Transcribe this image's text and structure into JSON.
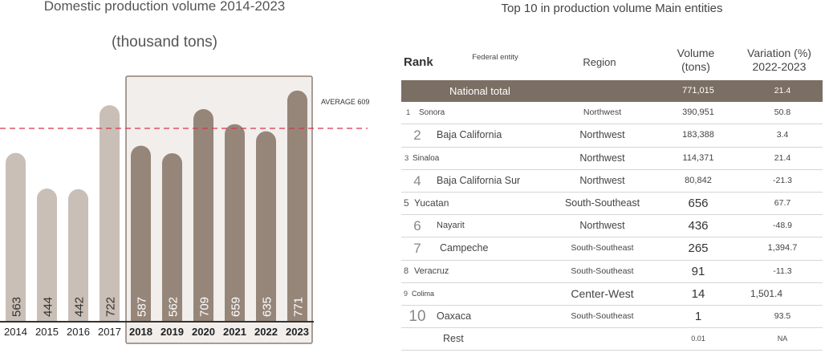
{
  "chart_data": {
    "type": "bar",
    "title": "Domestic production volume 2014-2023",
    "subtitle": "(thousand tons)",
    "categories": [
      "2014",
      "2015",
      "2016",
      "2017",
      "2018",
      "2019",
      "2020",
      "2021",
      "2022",
      "2023"
    ],
    "values": [
      563,
      444,
      442,
      722,
      587,
      562,
      709,
      659,
      635,
      771
    ],
    "value_labels": [
      "563",
      "444",
      "442",
      "722",
      "587",
      "562",
      "709",
      "659",
      "635",
      "771"
    ],
    "highlight_range": [
      "2018",
      "2023"
    ],
    "average": {
      "label": "AVERAGE 609",
      "value": 609
    },
    "ylim": [
      0,
      800
    ],
    "colors": {
      "bar": "#c9bfb7",
      "bar_highlight": "#968679",
      "highlight_box_fill": "#f1eeec",
      "highlight_box_stroke": "#8d7f74",
      "average_line": "#d6354d",
      "axis": "#333333"
    }
  },
  "table": {
    "title": "Top 10 in production volume Main entities",
    "headers": {
      "rank": "Rank",
      "entity": "Federal entity",
      "region": "Region",
      "volume_line1": "Volume",
      "volume_line2": "(tons)",
      "variation_line1": "Variation (%)",
      "variation_line2": "2022-2023"
    },
    "total": {
      "entity": "National total",
      "volume": "771,015",
      "variation": "21.4"
    },
    "rows": [
      {
        "rank": "1",
        "entity": "Sonora",
        "region": "Northwest",
        "volume": "390,951",
        "variation": "50.8"
      },
      {
        "rank": "2",
        "entity": "Baja California",
        "region": "Northwest",
        "volume": "183,388",
        "variation": "3.4"
      },
      {
        "rank": "3",
        "entity": "Sinaloa",
        "region": "Northwest",
        "volume": "114,371",
        "variation": "21.4"
      },
      {
        "rank": "4",
        "entity": "Baja California Sur",
        "region": "Northwest",
        "volume": "80,842",
        "variation": "-21.3"
      },
      {
        "rank": "5",
        "entity": "Yucatan",
        "region": "South-Southeast",
        "volume": "656",
        "variation": "67.7"
      },
      {
        "rank": "6",
        "entity": "Nayarit",
        "region": "Northwest",
        "volume": "436",
        "variation": "-48.9"
      },
      {
        "rank": "7",
        "entity": "Campeche",
        "region": "South-Southeast",
        "volume": "265",
        "variation": "1,394.7"
      },
      {
        "rank": "8",
        "entity": "Veracruz",
        "region": "South-Southeast",
        "volume": "91",
        "variation": "-11.3"
      },
      {
        "rank": "9",
        "entity": "Colima",
        "region": "Center-West",
        "volume": "14",
        "variation": "1,501.4"
      },
      {
        "rank": "10",
        "entity": "Oaxaca",
        "region": "South-Southeast",
        "volume": "1",
        "variation": "93.5"
      }
    ],
    "rest": {
      "entity": "Rest",
      "volume": "0.01",
      "variation": "NA"
    }
  }
}
